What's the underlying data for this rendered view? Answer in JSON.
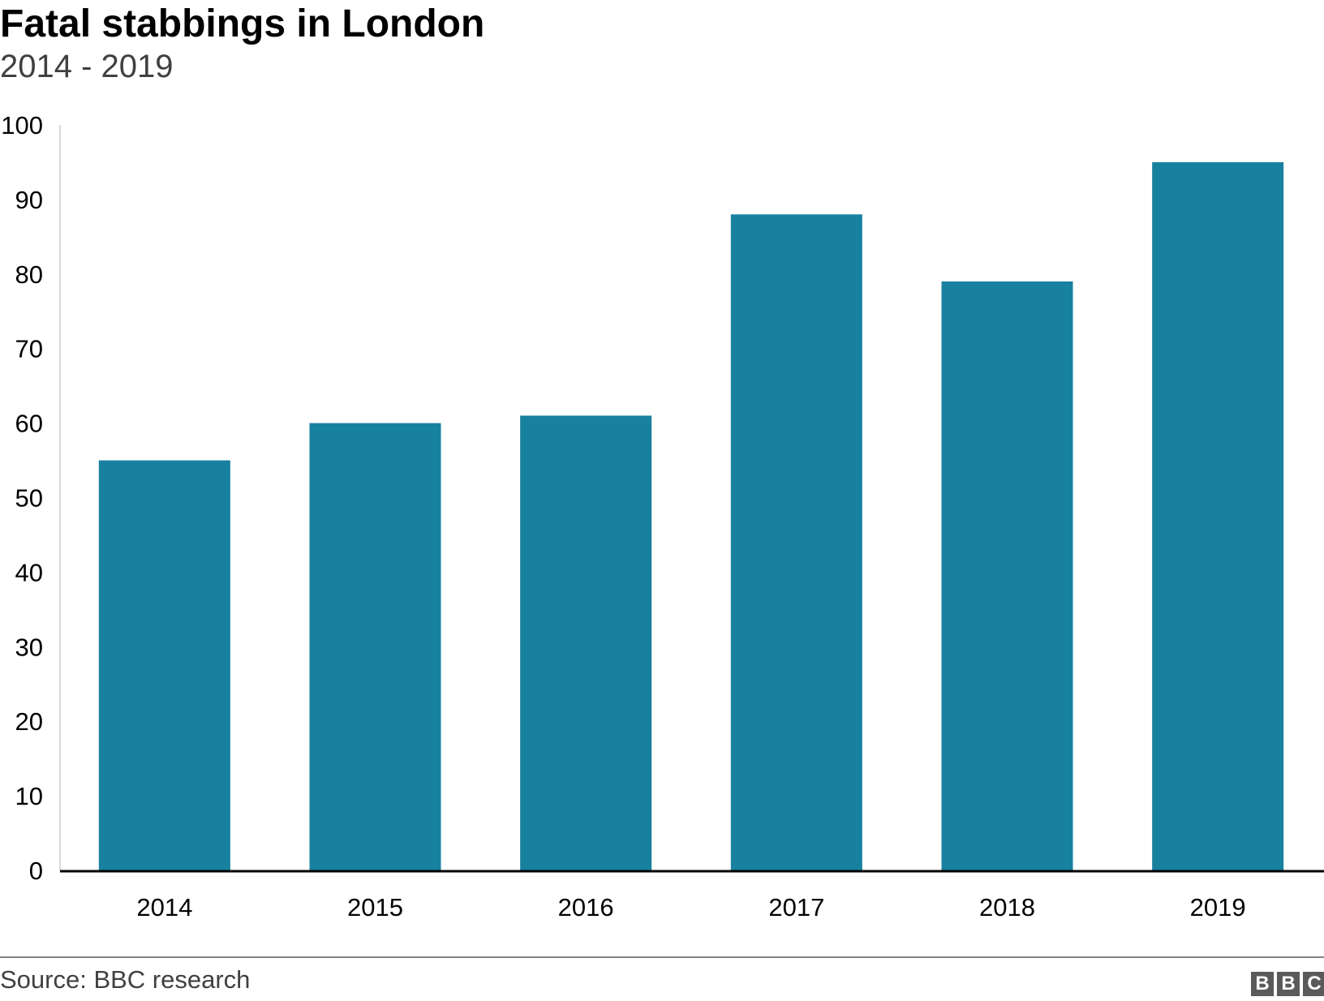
{
  "header": {
    "title": "Fatal stabbings in London",
    "subtitle": "2014 - 2019"
  },
  "footer": {
    "source": "Source: BBC research",
    "logo_letters": [
      "B",
      "B",
      "C"
    ]
  },
  "colors": {
    "bar": "#17819f",
    "axis": "#000000",
    "gridline": "#cccccc",
    "text": "#000000"
  },
  "chart_data": {
    "type": "bar",
    "title": "Fatal stabbings in London",
    "subtitle": "2014 - 2019",
    "categories": [
      "2014",
      "2015",
      "2016",
      "2017",
      "2018",
      "2019"
    ],
    "values": [
      55,
      60,
      61,
      88,
      79,
      95
    ],
    "ylim": [
      0,
      100
    ],
    "yticks": [
      0,
      10,
      20,
      30,
      40,
      50,
      60,
      70,
      80,
      90,
      100
    ],
    "grid": false,
    "legend": "none",
    "source": "Source: BBC research"
  }
}
